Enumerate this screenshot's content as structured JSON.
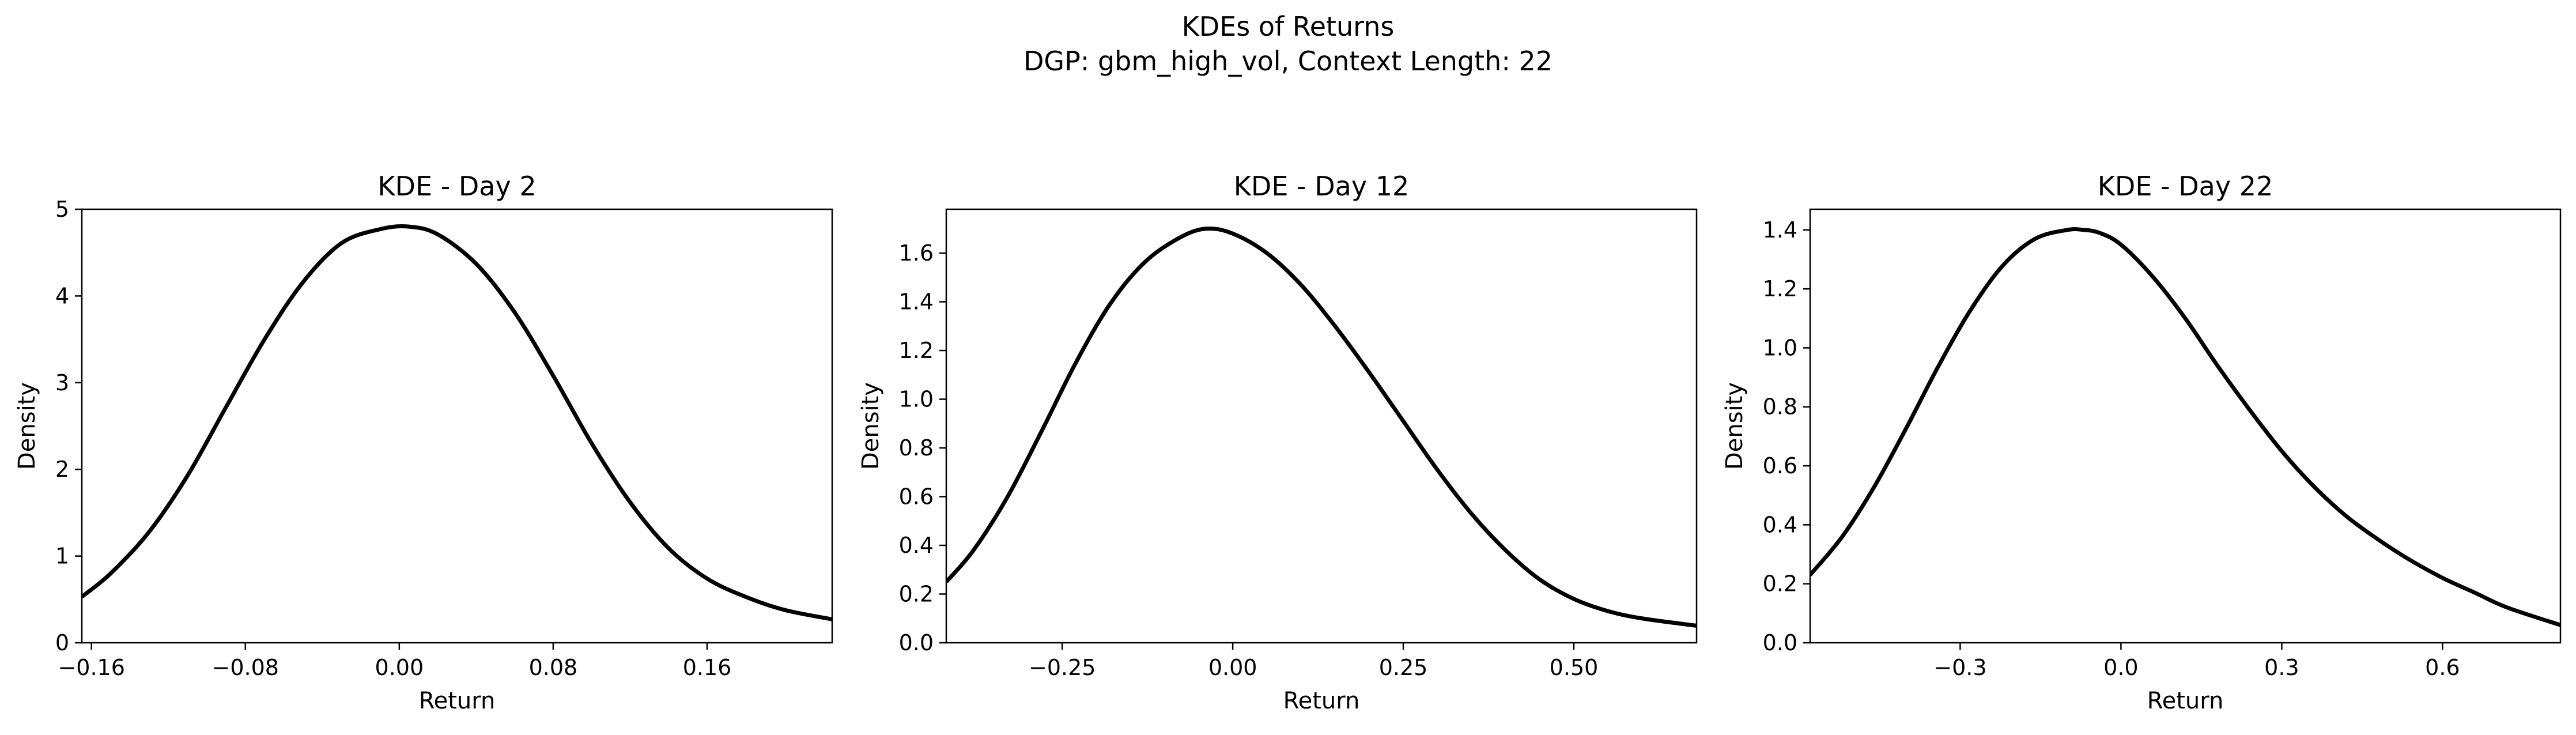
{
  "figure": {
    "title_line1": "KDEs of Returns",
    "title_line2": "DGP: gbm_high_vol, Context Length: 22"
  },
  "chart_data": [
    {
      "type": "line",
      "title": "KDE - Day 2",
      "xlabel": "Return",
      "ylabel": "Density",
      "xlim": [
        -0.165,
        0.225
      ],
      "ylim": [
        0,
        5.0
      ],
      "xticks": [
        -0.16,
        -0.08,
        0.0,
        0.08,
        0.16
      ],
      "xtick_labels": [
        "−0.16",
        "−0.08",
        "0.00",
        "0.08",
        "0.16"
      ],
      "yticks": [
        0,
        1,
        2,
        3,
        4,
        5
      ],
      "ytick_labels": [
        "0",
        "1",
        "2",
        "3",
        "4",
        "5"
      ],
      "line_color": "#000000",
      "series": [
        {
          "x": [
            -0.165,
            -0.15,
            -0.13,
            -0.11,
            -0.09,
            -0.07,
            -0.05,
            -0.03,
            -0.01,
            0.005,
            0.02,
            0.04,
            0.06,
            0.08,
            0.1,
            0.12,
            0.14,
            0.16,
            0.18,
            0.2,
            0.225
          ],
          "y": [
            0.53,
            0.8,
            1.28,
            1.93,
            2.72,
            3.5,
            4.16,
            4.61,
            4.77,
            4.8,
            4.71,
            4.37,
            3.81,
            3.08,
            2.3,
            1.62,
            1.09,
            0.74,
            0.53,
            0.38,
            0.27
          ]
        }
      ]
    },
    {
      "type": "line",
      "title": "KDE - Day 12",
      "xlabel": "Return",
      "ylabel": "Density",
      "xlim": [
        -0.42,
        0.68
      ],
      "ylim": [
        0,
        1.78
      ],
      "xticks": [
        -0.25,
        0.0,
        0.25,
        0.5
      ],
      "xtick_labels": [
        "−0.25",
        "0.00",
        "0.25",
        "0.50"
      ],
      "yticks": [
        0,
        0.2,
        0.4,
        0.6,
        0.8,
        1.0,
        1.2,
        1.4,
        1.6
      ],
      "ytick_labels": [
        "0.0",
        "0.2",
        "0.4",
        "0.6",
        "0.8",
        "1.0",
        "1.2",
        "1.4",
        "1.6"
      ],
      "line_color": "#000000",
      "series": [
        {
          "x": [
            -0.42,
            -0.38,
            -0.33,
            -0.28,
            -0.23,
            -0.18,
            -0.13,
            -0.08,
            -0.04,
            0.0,
            0.05,
            0.1,
            0.15,
            0.2,
            0.25,
            0.3,
            0.35,
            0.4,
            0.45,
            0.5,
            0.55,
            0.6,
            0.68
          ],
          "y": [
            0.25,
            0.38,
            0.6,
            0.87,
            1.15,
            1.39,
            1.56,
            1.66,
            1.7,
            1.68,
            1.6,
            1.47,
            1.3,
            1.11,
            0.91,
            0.71,
            0.53,
            0.38,
            0.26,
            0.18,
            0.13,
            0.1,
            0.07
          ]
        }
      ]
    },
    {
      "type": "line",
      "title": "KDE - Day 22",
      "xlabel": "Return",
      "ylabel": "Density",
      "xlim": [
        -0.58,
        0.82
      ],
      "ylim": [
        0,
        1.47
      ],
      "xticks": [
        -0.3,
        0.0,
        0.3,
        0.6
      ],
      "xtick_labels": [
        "−0.3",
        "0.0",
        "0.3",
        "0.6"
      ],
      "yticks": [
        0,
        0.2,
        0.4,
        0.6,
        0.8,
        1.0,
        1.2,
        1.4
      ],
      "ytick_labels": [
        "0.0",
        "0.2",
        "0.4",
        "0.6",
        "0.8",
        "1.0",
        "1.2",
        "1.4"
      ],
      "line_color": "#000000",
      "series": [
        {
          "x": [
            -0.58,
            -0.52,
            -0.46,
            -0.4,
            -0.34,
            -0.28,
            -0.22,
            -0.16,
            -0.1,
            -0.07,
            -0.04,
            0.0,
            0.06,
            0.12,
            0.18,
            0.24,
            0.3,
            0.36,
            0.42,
            0.48,
            0.54,
            0.6,
            0.66,
            0.72,
            0.82
          ],
          "y": [
            0.23,
            0.36,
            0.53,
            0.73,
            0.94,
            1.13,
            1.28,
            1.37,
            1.4,
            1.4,
            1.39,
            1.35,
            1.24,
            1.1,
            0.94,
            0.79,
            0.65,
            0.53,
            0.43,
            0.35,
            0.28,
            0.22,
            0.17,
            0.12,
            0.06
          ]
        }
      ]
    }
  ]
}
